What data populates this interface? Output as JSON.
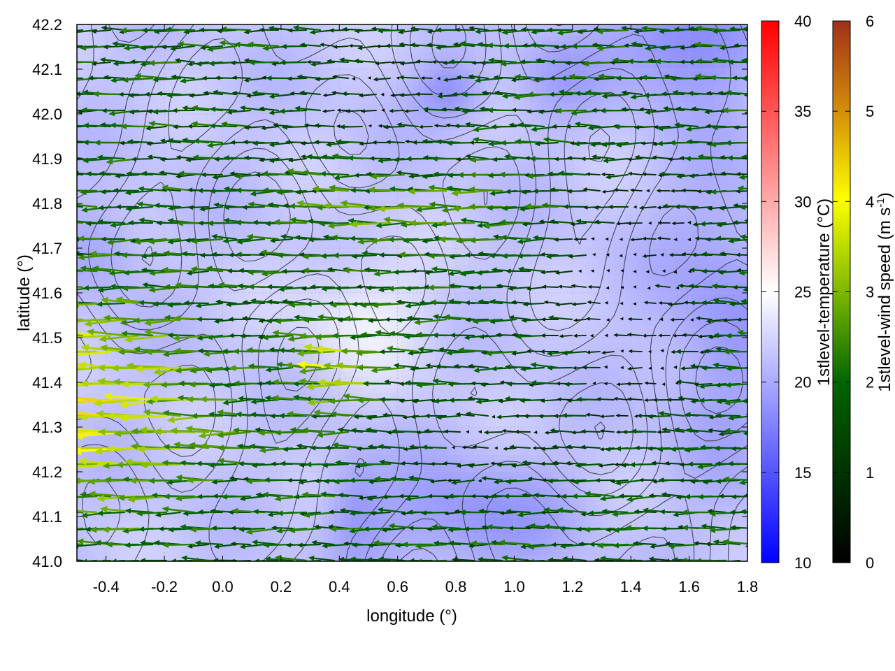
{
  "chart_data": {
    "type": "heatmap",
    "title": "",
    "xlabel": "longitude (°)",
    "ylabel": "latitude (°)",
    "xlim": [
      -0.5,
      1.8
    ],
    "ylim": [
      41.0,
      42.2
    ],
    "x_ticks": [
      "-0.4",
      "-0.2",
      "0.0",
      "0.2",
      "0.4",
      "0.6",
      "0.8",
      "1.0",
      "1.2",
      "1.4",
      "1.6",
      "1.8"
    ],
    "y_ticks": [
      "41.0",
      "41.1",
      "41.2",
      "41.3",
      "41.4",
      "41.5",
      "41.6",
      "41.7",
      "41.8",
      "41.9",
      "42.0",
      "42.1",
      "42.2"
    ],
    "grid": true,
    "background_field": {
      "name": "1stlevel-temperature (°C)",
      "colorbar_range": [
        10,
        40
      ],
      "colorbar_ticks": [
        "10",
        "15",
        "20",
        "25",
        "30",
        "35",
        "40"
      ],
      "colormap": [
        "#0000ff",
        "#ffffff",
        "#ff0000"
      ],
      "typical_range": [
        17,
        25
      ]
    },
    "vector_field": {
      "name": "1stlevel-wind speed (m s-1)",
      "colorbar_range": [
        0,
        6
      ],
      "colorbar_ticks": [
        "0",
        "1",
        "2",
        "3",
        "4",
        "5",
        "6"
      ],
      "colormap": [
        "#000000",
        "#006400",
        "#7cb800",
        "#ffff00",
        "#d4900a",
        "#a0301a"
      ],
      "dominant_direction": "westward",
      "max_speed_region": "west, lat 41.1-41.6",
      "typical_speed": [
        0,
        4.5
      ]
    },
    "contours": {
      "present": true,
      "color": "#303030"
    }
  },
  "colorbars": {
    "temperature": {
      "label": "1stlevel-temperature (°C)",
      "ticks": [
        "10",
        "15",
        "20",
        "25",
        "30",
        "35",
        "40"
      ]
    },
    "wind": {
      "label_main": "1stlevel-wind speed (m s",
      "label_sup": "-1",
      "label_end": ")",
      "ticks": [
        "0",
        "1",
        "2",
        "3",
        "4",
        "5",
        "6"
      ]
    }
  }
}
